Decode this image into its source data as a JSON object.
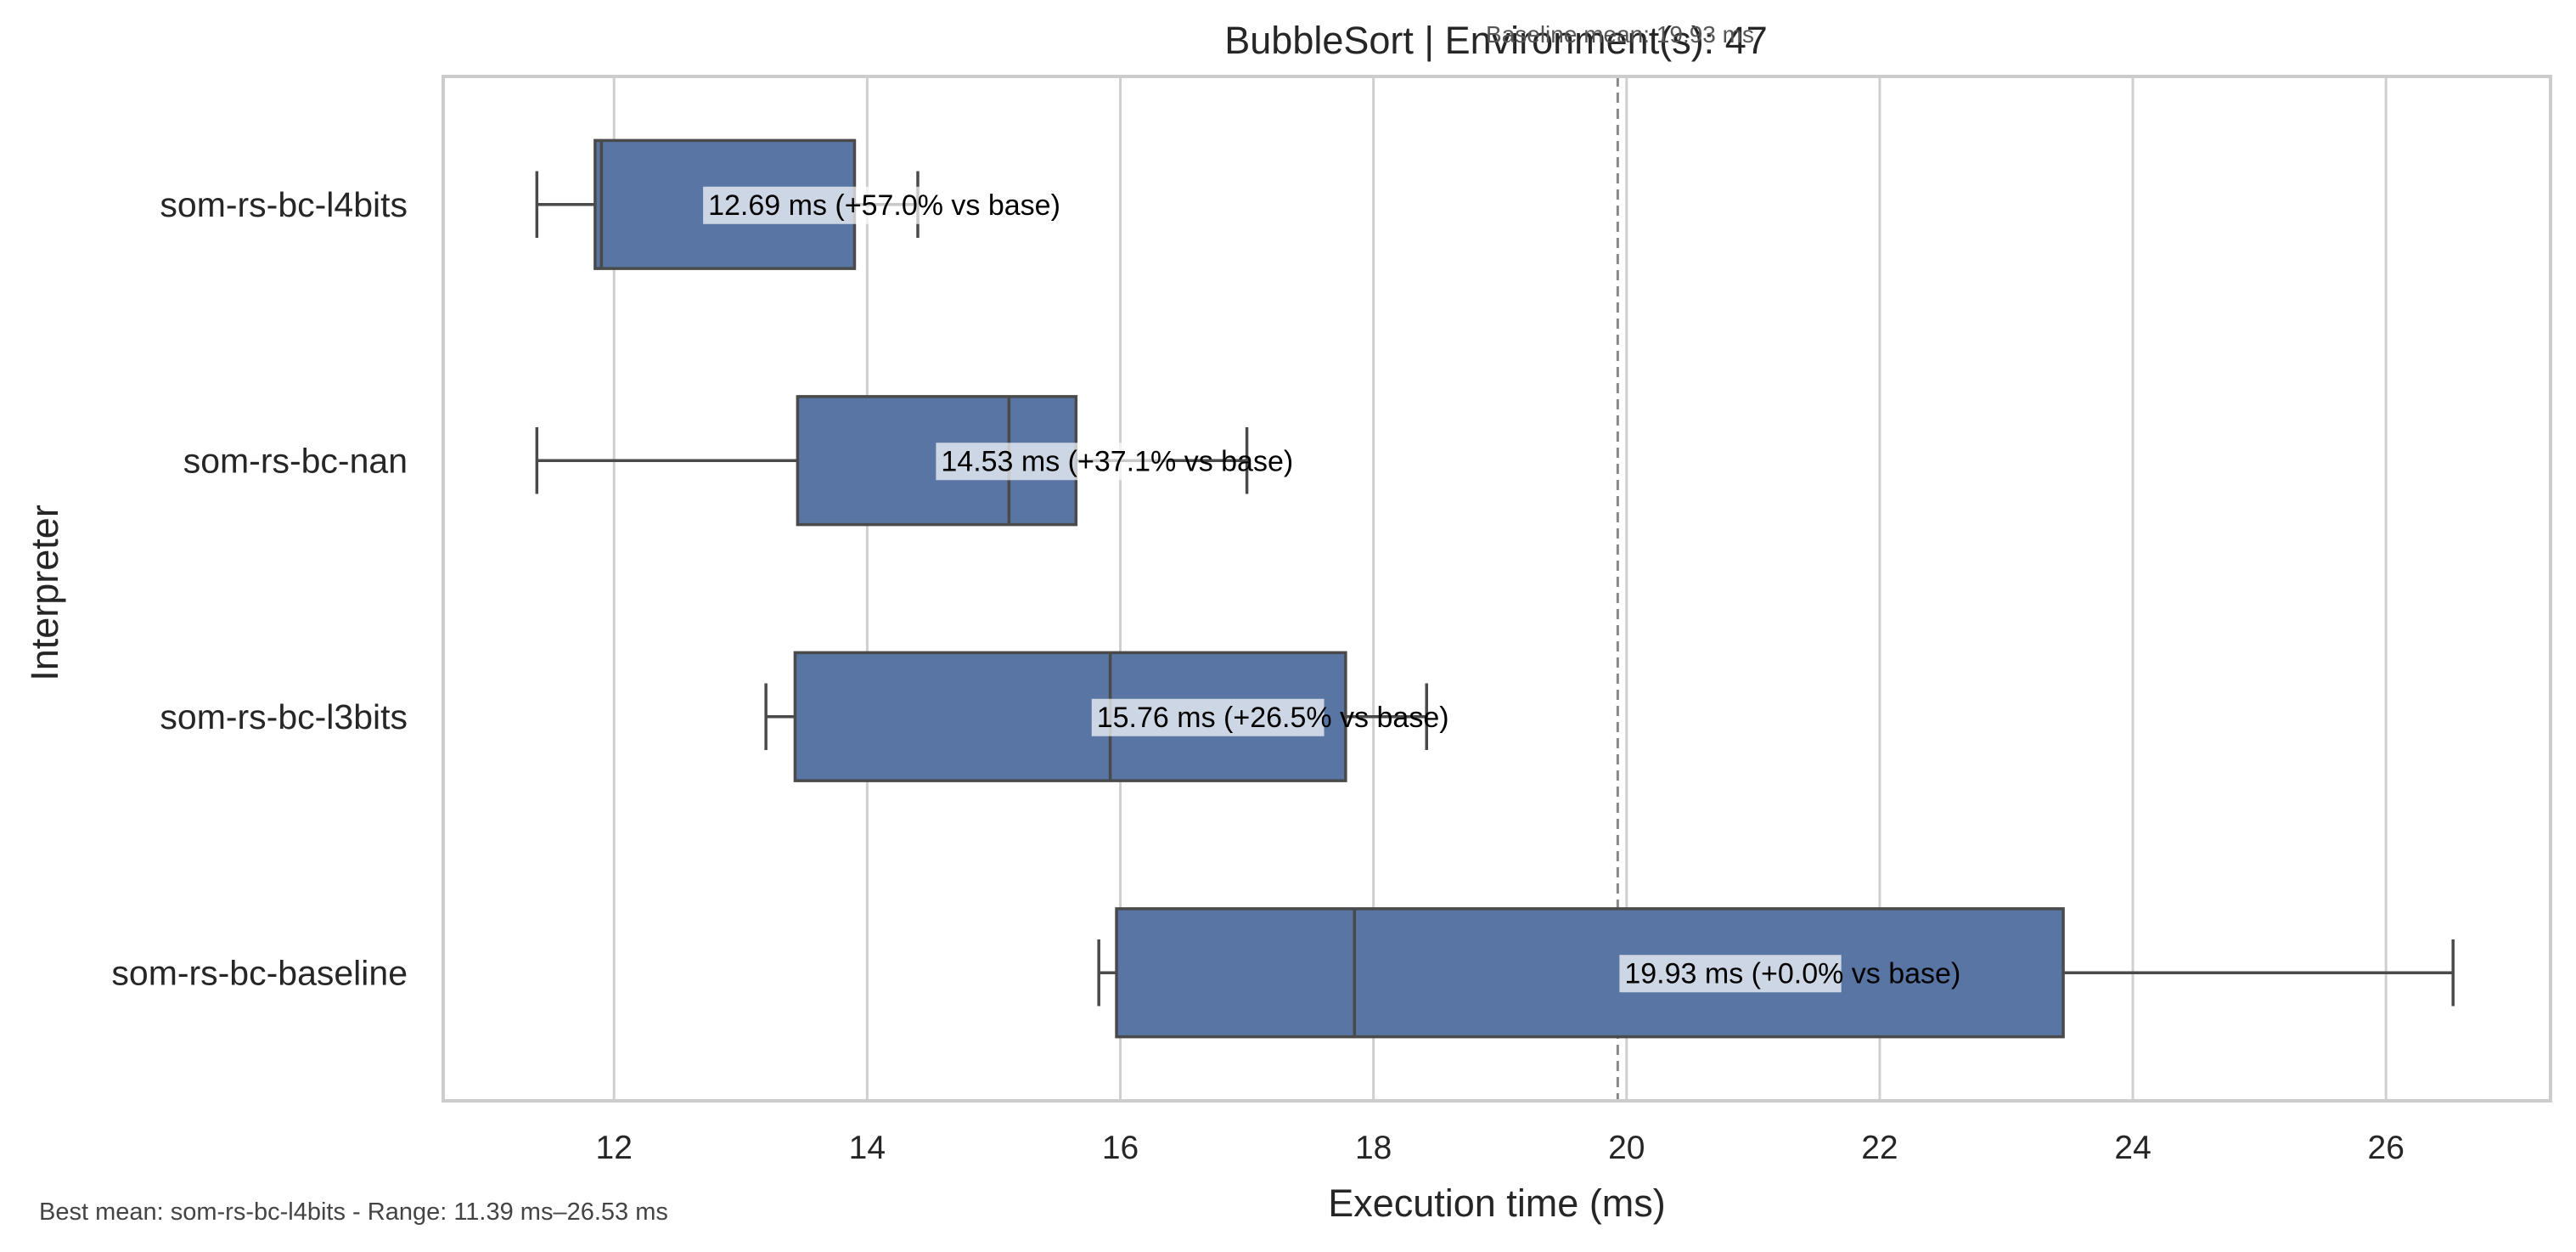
{
  "chart_data": {
    "type": "boxplot",
    "title": "BubbleSort | Environment(s): 47",
    "baseline_note": "Baseline mean: 19.93 ms",
    "xlabel": "Execution time (ms)",
    "ylabel": "Interpreter",
    "xlim": [
      10.65,
      27.3
    ],
    "xticks": [
      12,
      14,
      16,
      18,
      20,
      22,
      24,
      26
    ],
    "grid": "vertical",
    "orientation": "horizontal",
    "box_color": "#5875a4",
    "line_color": "#4a4a4a",
    "baseline_line": 19.93,
    "categories": [
      "som-rs-bc-l4bits",
      "som-rs-bc-nan",
      "som-rs-bc-l3bits",
      "som-rs-bc-baseline"
    ],
    "boxes": [
      {
        "name": "som-rs-bc-l4bits",
        "whisker_low": 11.39,
        "q1": 11.85,
        "median": 11.9,
        "q3": 13.9,
        "whisker_high": 14.4,
        "mean": 12.69,
        "label": "12.69 ms  (+57.0% vs base)"
      },
      {
        "name": "som-rs-bc-nan",
        "whisker_low": 11.39,
        "q1": 13.45,
        "median": 15.12,
        "q3": 15.65,
        "whisker_high": 17.0,
        "mean": 14.53,
        "label": "14.53 ms  (+37.1% vs base)"
      },
      {
        "name": "som-rs-bc-l3bits",
        "whisker_low": 13.2,
        "q1": 13.43,
        "median": 15.92,
        "q3": 17.78,
        "whisker_high": 18.42,
        "mean": 15.76,
        "label": "15.76 ms  (+26.5% vs base)"
      },
      {
        "name": "som-rs-bc-baseline",
        "whisker_low": 15.83,
        "q1": 15.97,
        "median": 17.85,
        "q3": 23.45,
        "whisker_high": 26.53,
        "mean": 19.93,
        "label": "19.93 ms  (+0.0% vs base)"
      }
    ],
    "footer": "Best mean: som-rs-bc-l4bits - Range: 11.39 ms–26.53 ms"
  }
}
